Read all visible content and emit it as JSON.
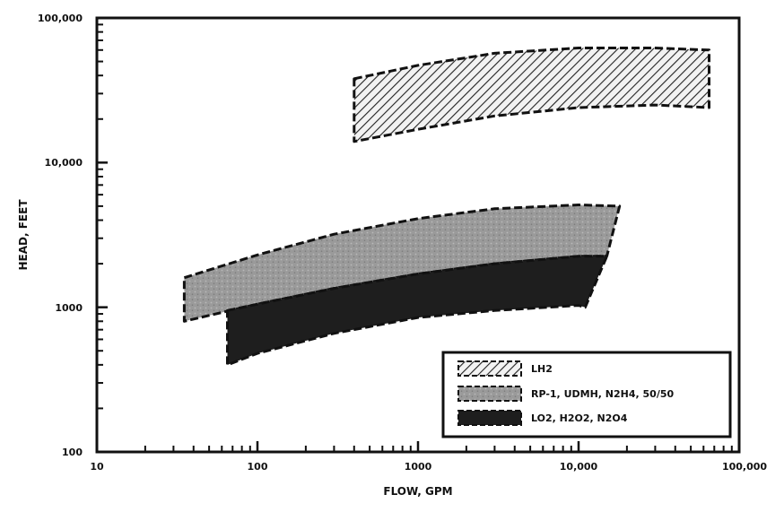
{
  "chart_data": {
    "type": "area",
    "x_scale": "log",
    "y_scale": "log",
    "xlim": [
      10,
      100000
    ],
    "ylim": [
      100,
      100000
    ],
    "xlabel": "FLOW, GPM",
    "ylabel": "HEAD, FEET",
    "x_tick_labels": [
      "10",
      "100",
      "1000",
      "10,000",
      "100,000"
    ],
    "y_tick_labels": [
      "100",
      "1000",
      "10,000",
      "100,000"
    ],
    "grid": false,
    "legend_position": "bottom-right",
    "series": [
      {
        "name": "LH2",
        "fill": "hatched",
        "upper": {
          "x": [
            400,
            1000,
            3000,
            10000,
            30000,
            65000
          ],
          "y": [
            38000,
            47000,
            57000,
            62000,
            62000,
            60000
          ]
        },
        "lower": {
          "x": [
            400,
            1000,
            3000,
            10000,
            30000,
            65000
          ],
          "y": [
            14000,
            17000,
            21000,
            24000,
            25000,
            24000
          ]
        }
      },
      {
        "name": "RP-1, UDMH, N2H4, 50/50",
        "fill": "light-gray",
        "upper": {
          "x": [
            35,
            100,
            300,
            1000,
            3000,
            10000,
            18000
          ],
          "y": [
            1600,
            2300,
            3200,
            4100,
            4800,
            5100,
            5000
          ]
        },
        "lower": {
          "x": [
            35,
            100,
            300,
            1000,
            3000,
            10000,
            15000
          ],
          "y": [
            800,
            1050,
            1350,
            1700,
            2000,
            2250,
            2250
          ]
        }
      },
      {
        "name": "LO2, H2O2, N2O4",
        "fill": "dark",
        "upper": {
          "x": [
            65,
            100,
            300,
            1000,
            3000,
            10000,
            15000
          ],
          "y": [
            950,
            1050,
            1350,
            1700,
            2000,
            2250,
            2250
          ]
        },
        "lower": {
          "x": [
            65,
            100,
            300,
            1000,
            3000,
            10000,
            11000
          ],
          "y": [
            400,
            480,
            660,
            850,
            950,
            1030,
            1000
          ]
        }
      }
    ]
  }
}
